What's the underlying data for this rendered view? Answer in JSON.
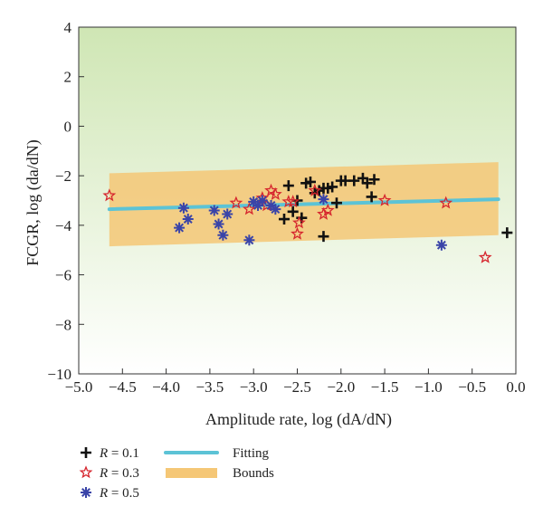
{
  "chart_data": {
    "type": "scatter",
    "xlabel": "Amplitude rate, log (dA/dN)",
    "ylabel": "FCGR, log (da/dN)",
    "xlim": [
      -5.0,
      0.0
    ],
    "ylim": [
      -10,
      4
    ],
    "x_ticks": [
      "−5.0",
      "−4.5",
      "−4.0",
      "−3.5",
      "−3.0",
      "−2.5",
      "−2.0",
      "−1.5",
      "−1.0",
      "−0.5",
      "0.0"
    ],
    "y_ticks": [
      "4",
      "2",
      "0",
      "−2",
      "−4",
      "−6",
      "−8",
      "−10"
    ],
    "grid": false,
    "background": "gradient green (top) to white (bottom)",
    "legend_position": "bottom-left, below plot",
    "legend": {
      "r01_prefix": "R",
      "r01_value": " = 0.1",
      "r03_prefix": "R",
      "r03_value": " = 0.3",
      "r05_prefix": "R",
      "r05_value": " = 0.5",
      "fitting": "Fitting",
      "bounds": "Bounds"
    },
    "colors": {
      "r01": "#111111",
      "r03": "#d6262e",
      "r05": "#3a44a8",
      "fitting": "#5cc3d6",
      "bounds": "#f5c776",
      "bg_top": "#cfe6b4",
      "bg_bottom": "#ffffff"
    },
    "fitting_line": {
      "x": [
        -4.65,
        -0.2
      ],
      "y": [
        -3.35,
        -2.95
      ]
    },
    "bounds_band": {
      "x": [
        -4.65,
        -0.2
      ],
      "upper": [
        -1.9,
        -1.45
      ],
      "lower": [
        -4.85,
        -4.4
      ]
    },
    "series": [
      {
        "name": "R = 0.1",
        "marker": "plus",
        "x": [
          -2.65,
          -2.6,
          -2.55,
          -2.5,
          -2.45,
          -2.4,
          -2.35,
          -2.3,
          -2.25,
          -2.2,
          -2.15,
          -2.1,
          -2.05,
          -2.0,
          -1.95,
          -1.85,
          -1.75,
          -1.7,
          -1.65,
          -1.62,
          -2.2,
          -0.1
        ],
        "y": [
          -3.75,
          -2.4,
          -3.45,
          -3.0,
          -3.7,
          -2.3,
          -2.25,
          -2.7,
          -2.6,
          -2.5,
          -2.5,
          -2.45,
          -3.1,
          -2.2,
          -2.2,
          -2.2,
          -2.1,
          -2.3,
          -2.85,
          -2.15,
          -4.45,
          -4.3
        ]
      },
      {
        "name": "R = 0.3",
        "marker": "star",
        "x": [
          -4.65,
          -3.2,
          -3.05,
          -2.9,
          -2.85,
          -2.8,
          -2.75,
          -2.55,
          -2.5,
          -2.48,
          -2.3,
          -2.2,
          -2.15,
          -2.6,
          -1.5,
          -0.8,
          -0.35
        ],
        "y": [
          -2.8,
          -3.1,
          -3.35,
          -2.9,
          -3.2,
          -2.6,
          -2.75,
          -3.05,
          -4.35,
          -3.9,
          -2.6,
          -3.55,
          -3.4,
          -3.05,
          -3.0,
          -3.1,
          -5.3
        ]
      },
      {
        "name": "R = 0.5",
        "marker": "asterisk",
        "x": [
          -3.85,
          -3.8,
          -3.75,
          -3.45,
          -3.4,
          -3.35,
          -3.3,
          -3.0,
          -2.95,
          -2.9,
          -2.8,
          -2.75,
          -2.2,
          -3.05,
          -0.85
        ],
        "y": [
          -4.1,
          -3.3,
          -3.75,
          -3.4,
          -3.95,
          -4.4,
          -3.55,
          -3.05,
          -3.2,
          -3.0,
          -3.2,
          -3.35,
          -2.95,
          -4.6,
          -4.8
        ]
      }
    ]
  }
}
